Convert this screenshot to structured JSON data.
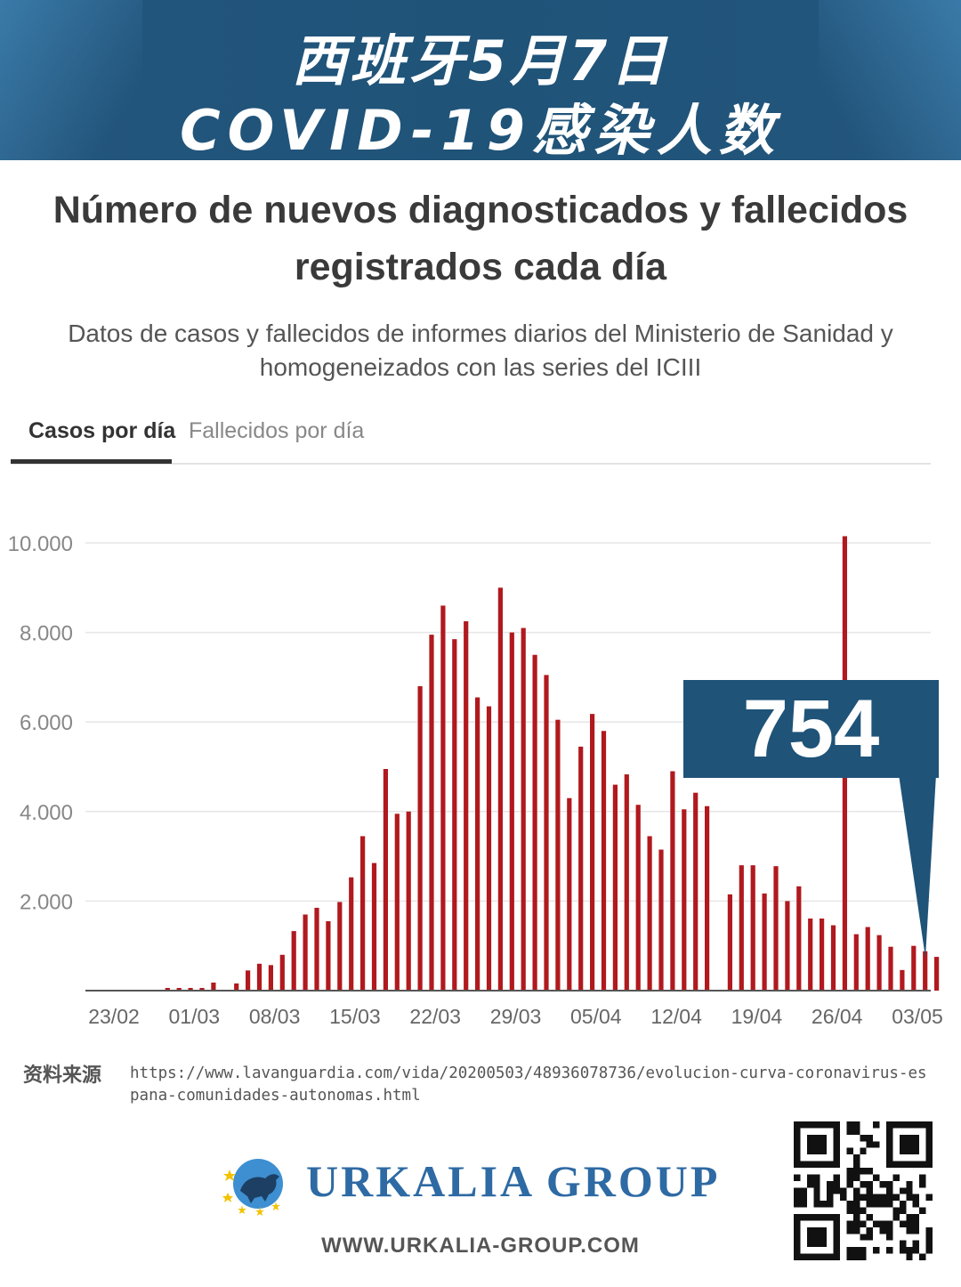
{
  "banner": {
    "line1": "西班牙5月7日",
    "line2": "COVID-19感染人数"
  },
  "tabs": {
    "cases_label": "Casos por día",
    "deaths_label": "Fallecidos por día"
  },
  "callout": {
    "value": "754"
  },
  "source": {
    "label": "资料来源",
    "url": "https://www.lavanguardia.com/vida/20200503/48936078736/evolucion-curva-coronavirus-espana-comunidades-autonomas.html"
  },
  "footer": {
    "brand": "URKALIA GROUP",
    "website": "WWW.URKALIA-GROUP.COM"
  },
  "colors": {
    "bar": "#b0191e",
    "banner": "#1f5378",
    "callout": "#1f5378",
    "brand": "#2e6aa3"
  },
  "chart_data": {
    "type": "bar",
    "title": "Número de nuevos diagnosticados y fallecidos registrados cada día",
    "subtitle": "Datos de casos y fallecidos de informes diarios del Ministerio de Sanidad y homogeneizados con las series del ICIII",
    "xlabel": "",
    "ylabel": "",
    "ylim": [
      0,
      10000
    ],
    "yticks": [
      "2.000",
      "4.000",
      "6.000",
      "8.000",
      "10.000"
    ],
    "ytick_values": [
      2000,
      4000,
      6000,
      8000,
      10000
    ],
    "xtick_labels": [
      "23/02",
      "01/03",
      "08/03",
      "15/03",
      "22/03",
      "29/03",
      "05/04",
      "12/04",
      "19/04",
      "26/04",
      "03/05"
    ],
    "xtick_indices": [
      0,
      7,
      14,
      21,
      28,
      35,
      42,
      49,
      56,
      63,
      70
    ],
    "categories": [
      "23/02",
      "24/02",
      "25/02",
      "26/02",
      "27/02",
      "28/02",
      "29/02",
      "01/03",
      "02/03",
      "03/03",
      "04/03",
      "05/03",
      "06/03",
      "07/03",
      "08/03",
      "09/03",
      "10/03",
      "11/03",
      "12/03",
      "13/03",
      "14/03",
      "15/03",
      "16/03",
      "17/03",
      "18/03",
      "19/03",
      "20/03",
      "21/03",
      "22/03",
      "23/03",
      "24/03",
      "25/03",
      "26/03",
      "27/03",
      "28/03",
      "29/03",
      "30/03",
      "31/03",
      "01/04",
      "02/04",
      "03/04",
      "04/04",
      "05/04",
      "06/04",
      "07/04",
      "08/04",
      "09/04",
      "10/04",
      "11/04",
      "12/04",
      "13/04",
      "14/04",
      "15/04",
      "16/04",
      "17/04",
      "18/04",
      "19/04",
      "20/04",
      "21/04",
      "22/04",
      "23/04",
      "24/04",
      "25/04",
      "26/04",
      "27/04",
      "28/04",
      "29/04",
      "30/04",
      "01/05",
      "02/05",
      "03/05",
      "04/05",
      "05/05",
      "06/05",
      "07/05"
    ],
    "values": [
      0,
      0,
      0,
      0,
      0,
      0,
      0,
      60,
      60,
      60,
      60,
      180,
      0,
      160,
      450,
      600,
      570,
      800,
      1330,
      1700,
      1850,
      1550,
      1980,
      2530,
      3450,
      2850,
      4950,
      3950,
      4000,
      6800,
      7950,
      8600,
      7850,
      8250,
      6550,
      6350,
      9000,
      8000,
      8100,
      7500,
      7050,
      6050,
      4300,
      5450,
      6180,
      5800,
      4600,
      4830,
      4150,
      3450,
      3150,
      4900,
      4050,
      4420,
      4120,
      0,
      2150,
      2800,
      2800,
      2170,
      2780,
      2000,
      2330,
      1610,
      1610,
      1460,
      10150,
      1260,
      1420,
      1240,
      980,
      460,
      1000,
      880,
      754
    ]
  }
}
